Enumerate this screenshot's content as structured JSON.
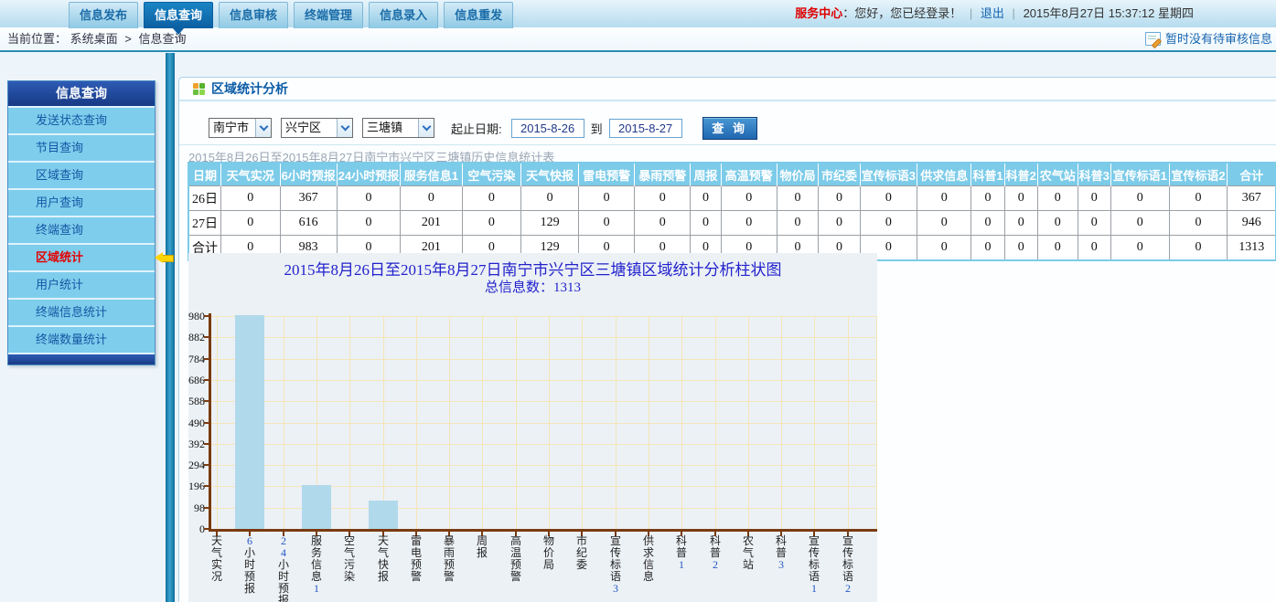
{
  "topbar": {
    "tabs": [
      {
        "name": "tab-info-publish",
        "label": "信息发布",
        "active": false
      },
      {
        "name": "tab-info-query",
        "label": "信息查询",
        "active": true
      },
      {
        "name": "tab-info-audit",
        "label": "信息审核",
        "active": false
      },
      {
        "name": "tab-terminal-manage",
        "label": "终端管理",
        "active": false
      },
      {
        "name": "tab-info-entry",
        "label": "信息录入",
        "active": false
      },
      {
        "name": "tab-info-resend",
        "label": "信息重发",
        "active": false
      }
    ],
    "service_center": "服务中心",
    "greeting": "：您好，您已经登录！",
    "sep": "|",
    "logout": "退出",
    "datetime": "2015年8月27日  15:37:12 星期四"
  },
  "breadcrumb": {
    "label": "当前位置：",
    "home": "系统桌面",
    "arrow": ">",
    "current": "信息查询",
    "audit_notice": "暂时没有待审核信息"
  },
  "sidebar": {
    "title": "信息查询",
    "items": [
      {
        "name": "send-status-query",
        "label": "发送状态查询",
        "active": false
      },
      {
        "name": "program-query",
        "label": "节目查询",
        "active": false
      },
      {
        "name": "region-query",
        "label": "区域查询",
        "active": false
      },
      {
        "name": "user-query",
        "label": "用户查询",
        "active": false
      },
      {
        "name": "terminal-query",
        "label": "终端查询",
        "active": false
      },
      {
        "name": "region-stats",
        "label": "区域统计",
        "active": true
      },
      {
        "name": "user-stats",
        "label": "用户统计",
        "active": false
      },
      {
        "name": "terminal-info-stats",
        "label": "终端信息统计",
        "active": false
      },
      {
        "name": "terminal-count-stats",
        "label": "终端数量统计",
        "active": false
      }
    ]
  },
  "panel": {
    "title": "区域统计分析",
    "form": {
      "region_selects": [
        "南宁市",
        "兴宁区",
        "三塘镇"
      ],
      "date_label": "起止日期:",
      "date_from": "2015-8-26",
      "to_label": "到",
      "date_to": "2015-8-27",
      "query_button": "查 询"
    },
    "table": {
      "caption": "2015年8月26日至2015年8月27日南宁市兴宁区三塘镇历史信息统计表",
      "headers": [
        "日期",
        "天气实况",
        "6小时预报",
        "24小时预报",
        "服务信息1",
        "空气污染",
        "天气快报",
        "雷电预警",
        "暴雨预警",
        "周报",
        "高温预警",
        "物价局",
        "市纪委",
        "宣传标语3",
        "供求信息",
        "科普1",
        "科普2",
        "农气站",
        "科普3",
        "宣传标语1",
        "宣传标语2",
        "合计"
      ],
      "rows": [
        {
          "label": "26日",
          "values": [
            0,
            367,
            0,
            0,
            0,
            0,
            0,
            0,
            0,
            0,
            0,
            0,
            0,
            0,
            0,
            0,
            0,
            0,
            0,
            0,
            367
          ]
        },
        {
          "label": "27日",
          "values": [
            0,
            616,
            0,
            201,
            0,
            129,
            0,
            0,
            0,
            0,
            0,
            0,
            0,
            0,
            0,
            0,
            0,
            0,
            0,
            0,
            946
          ]
        },
        {
          "label": "合计",
          "values": [
            0,
            983,
            0,
            201,
            0,
            129,
            0,
            0,
            0,
            0,
            0,
            0,
            0,
            0,
            0,
            0,
            0,
            0,
            0,
            0,
            1313
          ]
        }
      ]
    }
  },
  "chart_data": {
    "type": "bar",
    "title": "2015年8月26日至2015年8月27日南宁市兴宁区三塘镇区域统计分析柱状图",
    "subtitle": "总信息数：1313",
    "categories": [
      "天气实况",
      "6小时预报",
      "24小时预报",
      "服务信息1",
      "空气污染",
      "天气快报",
      "雷电预警",
      "暴雨预警",
      "周报",
      "高温预警",
      "物价局",
      "市纪委",
      "宣传标语3",
      "供求信息",
      "科普1",
      "科普2",
      "农气站",
      "科普3",
      "宣传标语1",
      "宣传标语2"
    ],
    "values": [
      0,
      983,
      0,
      201,
      0,
      129,
      0,
      0,
      0,
      0,
      0,
      0,
      0,
      0,
      0,
      0,
      0,
      0,
      0,
      0
    ],
    "ylim": [
      0,
      980
    ],
    "yticks": [
      0,
      98,
      196,
      294,
      392,
      490,
      588,
      686,
      784,
      882,
      980
    ],
    "grid": true,
    "legend": "none",
    "bar_color": "#b1d9ec",
    "axis_color": "#7a3b10",
    "grid_color": "#f5e5b8",
    "plot_bg": "#ecf1f5",
    "title_color": "#2222cc"
  },
  "icons": {
    "panel_icon": "squares-grid",
    "audit_icon": "note-pencil",
    "select_arrow_icon": "chevron-down",
    "active_tab_pointer": "triangle-down",
    "sidebar_pointer": "arrow-left-yellow"
  }
}
